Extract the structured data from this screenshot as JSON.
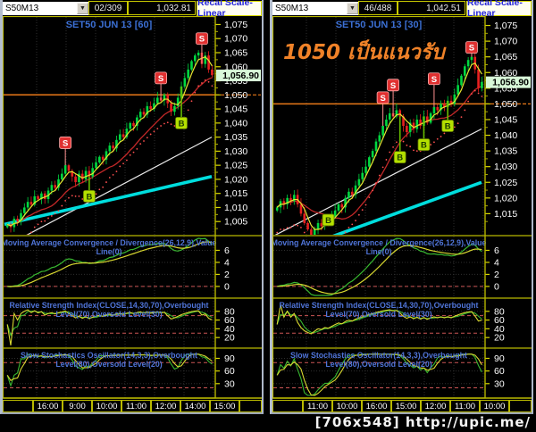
{
  "watermark": "[706x548] http://upic.me/",
  "colors": {
    "panel_border": "#b8b800",
    "grid": "#2e2e2e",
    "axis_text": "#ffffff",
    "title_blue": "#3b6fd4",
    "header_blue": "#4f74d8",
    "candle_up": "#00d840",
    "candle_down": "#e82020",
    "ma_yellow": "#e6e630",
    "ma_red": "#c22828",
    "sar_red": "#ff5050",
    "line_white": "#ececec",
    "line_cyan": "#00dede",
    "support_orange": "#e87818",
    "annotation_orange": "#f08228",
    "sell_marker": "#e03030",
    "buy_marker": "#b4e000",
    "last_tag_bg": "#d8f8d8",
    "dash_red": "#cc5555",
    "indicator_green": "#38b830",
    "indicator_yellow": "#d8d830"
  },
  "windows": [
    {
      "side": "left",
      "toolbar": {
        "symbol": "S50M13",
        "bar_counter": "02/309",
        "last_value": "1,032.81",
        "recal_label": "Recal Scale-Linear"
      },
      "title": "SET50 JUN 13   [60]",
      "annotation": "",
      "price_panel": {
        "min": 1000,
        "max": 1078,
        "ticks": [
          1005,
          1010,
          1015,
          1020,
          1025,
          1030,
          1035,
          1040,
          1045,
          1050,
          1055,
          1060,
          1065,
          1070,
          1075
        ],
        "support_level": 1050,
        "last_price": 1056.9,
        "last_price_label": "1,056.90",
        "closes": [
          1004,
          1003,
          1006,
          1005,
          1008,
          1010,
          1012,
          1011,
          1014,
          1013,
          1015,
          1013,
          1016,
          1018,
          1017,
          1020,
          1022,
          1025,
          1023,
          1021,
          1019,
          1022,
          1020,
          1023,
          1021,
          1024,
          1026,
          1028,
          1027,
          1030,
          1032,
          1031,
          1034,
          1036,
          1035,
          1038,
          1040,
          1039,
          1042,
          1044,
          1043,
          1046,
          1045,
          1047,
          1049,
          1048,
          1050,
          1047,
          1044,
          1046,
          1049,
          1053,
          1056,
          1059,
          1062,
          1064,
          1065,
          1061,
          1064,
          1059,
          1057
        ],
        "markers": [
          {
            "type": "S",
            "bar": 17,
            "price": 1033
          },
          {
            "type": "B",
            "bar": 24,
            "price": 1014
          },
          {
            "type": "S",
            "bar": 45,
            "price": 1056
          },
          {
            "type": "B",
            "bar": 51,
            "price": 1040
          },
          {
            "type": "S",
            "bar": 57,
            "price": 1070
          }
        ],
        "white_line": [
          996,
          1035
        ],
        "cyan_line": [
          1004,
          1021
        ]
      },
      "macd": {
        "header_line1": "Moving Average Convergence / Divergence(26,12,9),Value",
        "header_line2": "Line(0)",
        "ticks": [
          6,
          4,
          2,
          0
        ],
        "dash_levels": [
          0
        ],
        "range": [
          -1.5,
          8
        ]
      },
      "rsi": {
        "header_line1": "Relative Strength Index(CLOSE,14,30,70),Overbought",
        "header_line2": "Level(70),Oversold Level(30)",
        "ticks": [
          80,
          60,
          40,
          20
        ],
        "dash_levels": [
          70,
          30
        ],
        "range": [
          2,
          104
        ]
      },
      "stoch": {
        "header_line1": "Slow Stochastics Oscillator(14,3,3),Overbought",
        "header_line2": "Level(80),Oversold Level(20)",
        "ticks": [
          90,
          60,
          30
        ],
        "dash_levels": [
          80,
          20
        ],
        "range": [
          2,
          108
        ]
      },
      "times": [
        "16:00",
        "9:00",
        "10:00",
        "11:00",
        "12:00",
        "14:00",
        "15:00"
      ]
    },
    {
      "side": "right",
      "toolbar": {
        "symbol": "S50M13",
        "bar_counter": "46/488",
        "last_value": "1,042.51",
        "recal_label": "Recal Scale-Linear"
      },
      "title": "SET50 JUN 13   [30]",
      "annotation": "1050 เป็นแนวรับ",
      "price_panel": {
        "min": 1008,
        "max": 1078,
        "ticks": [
          1015,
          1020,
          1025,
          1030,
          1035,
          1040,
          1045,
          1050,
          1055,
          1060,
          1065,
          1070,
          1075
        ],
        "support_level": 1050,
        "last_price": 1056.9,
        "last_price_label": "1,056.90",
        "closes": [
          1017,
          1019,
          1018,
          1020,
          1019,
          1021,
          1018,
          1015,
          1012,
          1010,
          1008,
          1010,
          1012,
          1011,
          1013,
          1012,
          1014,
          1016,
          1018,
          1017,
          1020,
          1022,
          1021,
          1024,
          1026,
          1028,
          1030,
          1033,
          1035,
          1038,
          1040,
          1043,
          1045,
          1047,
          1046,
          1048,
          1046,
          1043,
          1041,
          1044,
          1042,
          1045,
          1043,
          1046,
          1044,
          1047,
          1049,
          1048,
          1050,
          1049,
          1051,
          1050,
          1053,
          1056,
          1059,
          1062,
          1064,
          1065,
          1061,
          1055,
          1057
        ],
        "markers": [
          {
            "type": "B",
            "bar": 15,
            "price": 1013
          },
          {
            "type": "S",
            "bar": 31,
            "price": 1052
          },
          {
            "type": "S",
            "bar": 34,
            "price": 1056
          },
          {
            "type": "B",
            "bar": 36,
            "price": 1033
          },
          {
            "type": "B",
            "bar": 43,
            "price": 1037
          },
          {
            "type": "S",
            "bar": 46,
            "price": 1058
          },
          {
            "type": "B",
            "bar": 50,
            "price": 1043
          },
          {
            "type": "S",
            "bar": 57,
            "price": 1068
          }
        ],
        "white_line": [
          1008,
          1042
        ],
        "cyan_line": [
          1001,
          1025
        ]
      },
      "macd": {
        "header_line1": "Moving Average Convergence / Divergence(26,12,9),Value",
        "header_line2": "Line(0)",
        "ticks": [
          6,
          4,
          2,
          0
        ],
        "dash_levels": [
          0
        ],
        "range": [
          -1.5,
          8
        ]
      },
      "rsi": {
        "header_line1": "Relative Strength Index(CLOSE,14,30,70),Overbought",
        "header_line2": "Level(70),Oversold Level(30)",
        "ticks": [
          80,
          60,
          40,
          20
        ],
        "dash_levels": [
          70,
          30
        ],
        "range": [
          2,
          104
        ]
      },
      "stoch": {
        "header_line1": "Slow Stochastics Oscillator(14,3,3),Overbought",
        "header_line2": "Level(80),Oversold Level(20)",
        "ticks": [
          90,
          60,
          30
        ],
        "dash_levels": [
          80,
          20
        ],
        "range": [
          2,
          108
        ]
      },
      "times": [
        "11:00",
        "10:00",
        "16:00",
        "15:00",
        "12:00",
        "11:00",
        "10:00"
      ]
    }
  ]
}
